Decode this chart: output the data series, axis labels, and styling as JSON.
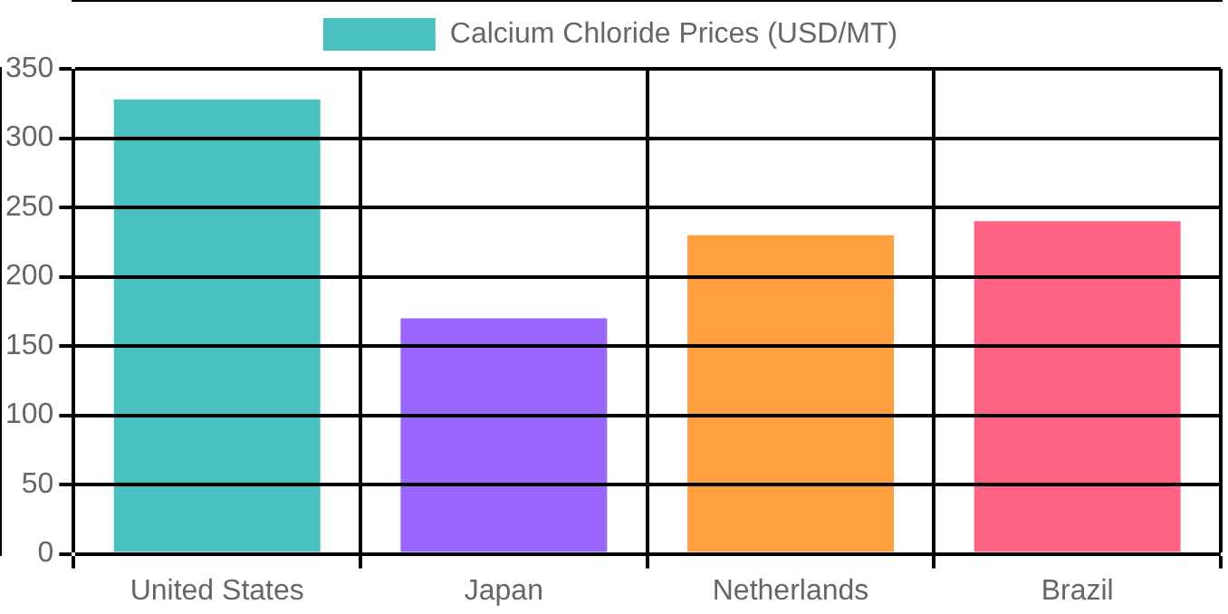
{
  "chart_data": {
    "type": "bar",
    "categories": [
      "United States",
      "Japan",
      "Netherlands",
      "Brazil"
    ],
    "series": [
      {
        "name": "Calcium Chloride Prices (USD/MT)",
        "color": "#4bc0c0",
        "colors": [
          "#4bc0c0",
          "#9966ff",
          "#ff9f40",
          "#ff6384"
        ],
        "values": [
          328,
          170,
          230,
          240
        ]
      }
    ],
    "ylim": [
      0,
      350
    ],
    "yticks": [
      0,
      50,
      100,
      150,
      200,
      250,
      300,
      350
    ],
    "grid": true,
    "legend": "top"
  }
}
